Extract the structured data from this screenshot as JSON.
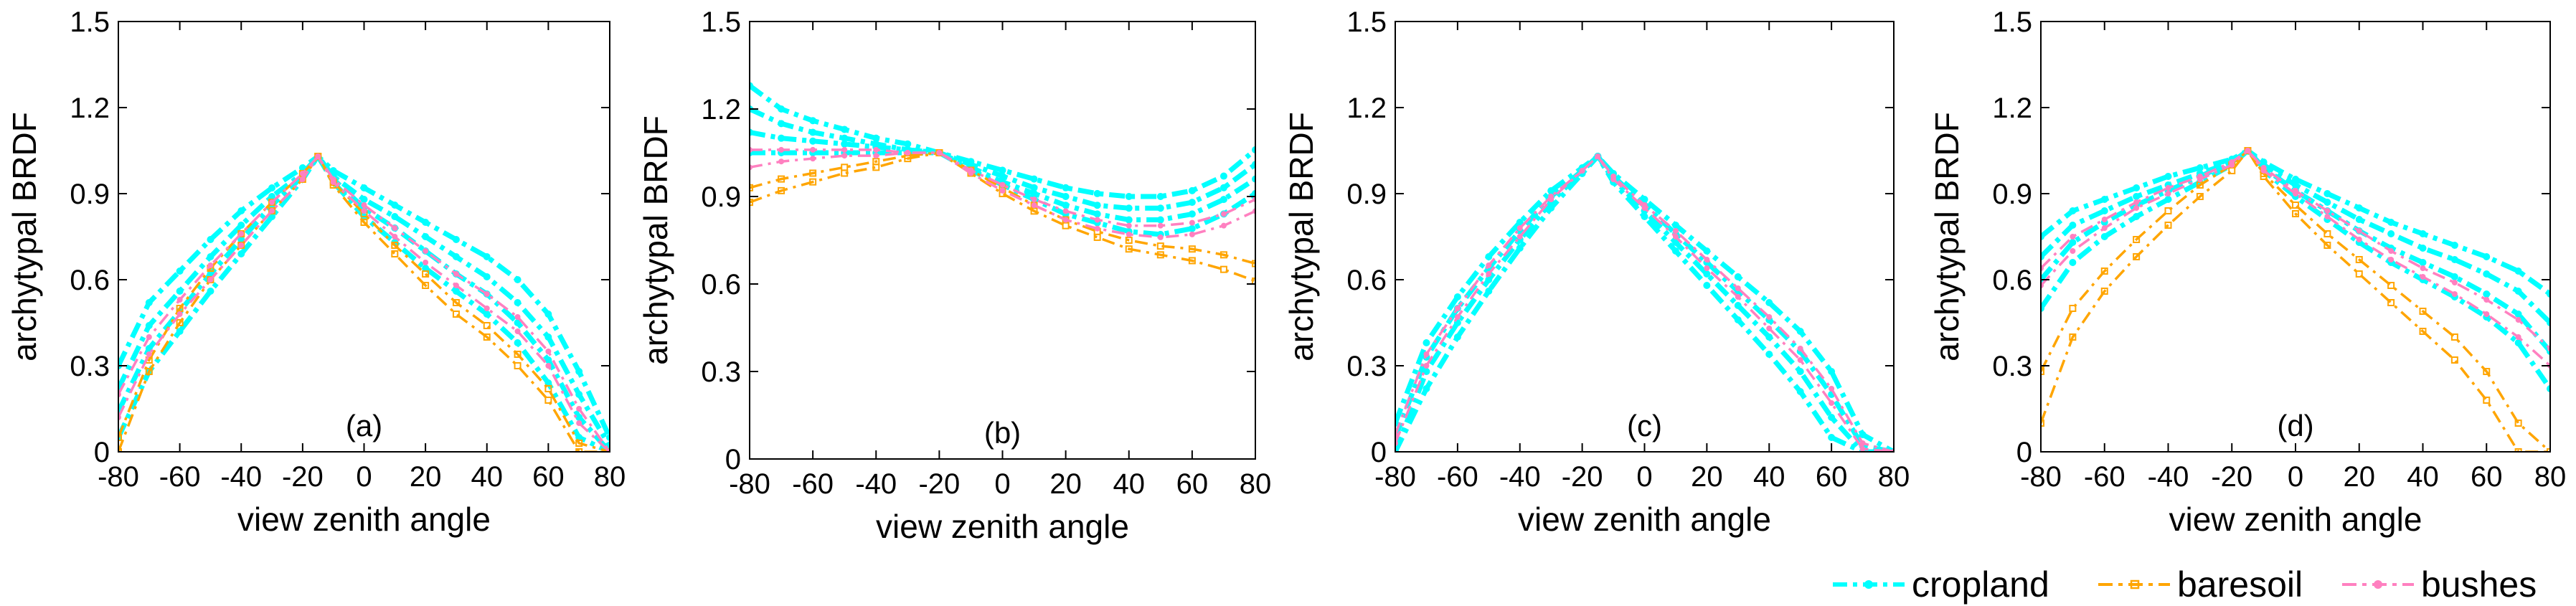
{
  "figure": {
    "legend": [
      {
        "name": "cropland",
        "color": "#00FFFF",
        "marker": "dot",
        "dash": "dashdot"
      },
      {
        "name": "baresoil",
        "color": "#FFA500",
        "marker": "square",
        "dash": "dashdot"
      },
      {
        "name": "bushes",
        "color": "#FF80C0",
        "marker": "dot",
        "dash": "dashdot"
      }
    ]
  },
  "chart_data": [
    {
      "type": "line",
      "panel_label": "(a)",
      "xlabel": "view zenith angle",
      "ylabel": "archytypal BRDF",
      "xlim": [
        -80,
        80
      ],
      "ylim": [
        0,
        1.5
      ],
      "xticks": [
        "-80",
        "-60",
        "-40",
        "-20",
        "0",
        "20",
        "40",
        "60",
        "80"
      ],
      "yticks": [
        "0",
        "0.3",
        "0.6",
        "0.9",
        "1.2",
        "1.5"
      ],
      "x": [
        -80,
        -70,
        -60,
        -50,
        -40,
        -30,
        -20,
        -15,
        -10,
        0,
        10,
        20,
        30,
        40,
        50,
        60,
        70,
        80
      ],
      "series": [
        {
          "name": "cropland",
          "values": [
            0.3,
            0.52,
            0.63,
            0.74,
            0.84,
            0.92,
            0.99,
            1.03,
            0.98,
            0.92,
            0.86,
            0.8,
            0.74,
            0.68,
            0.6,
            0.48,
            0.28,
            0.05
          ]
        },
        {
          "name": "cropland",
          "values": [
            0.22,
            0.44,
            0.56,
            0.68,
            0.79,
            0.89,
            0.97,
            1.03,
            0.96,
            0.88,
            0.82,
            0.75,
            0.68,
            0.61,
            0.52,
            0.4,
            0.2,
            0.02
          ]
        },
        {
          "name": "cropland",
          "values": [
            0.14,
            0.36,
            0.49,
            0.62,
            0.74,
            0.86,
            0.96,
            1.03,
            0.95,
            0.85,
            0.78,
            0.7,
            0.62,
            0.55,
            0.45,
            0.32,
            0.12,
            0.0
          ]
        },
        {
          "name": "cropland",
          "values": [
            0.05,
            0.28,
            0.42,
            0.56,
            0.69,
            0.82,
            0.95,
            1.03,
            0.94,
            0.82,
            0.73,
            0.64,
            0.56,
            0.48,
            0.38,
            0.24,
            0.05,
            0.0
          ]
        },
        {
          "name": "baresoil",
          "values": [
            0.0,
            0.28,
            0.45,
            0.6,
            0.72,
            0.84,
            0.95,
            1.03,
            0.93,
            0.8,
            0.69,
            0.58,
            0.48,
            0.4,
            0.3,
            0.18,
            0.0,
            0.0
          ]
        },
        {
          "name": "baresoil",
          "values": [
            0.05,
            0.32,
            0.5,
            0.64,
            0.76,
            0.87,
            0.97,
            1.03,
            0.94,
            0.83,
            0.72,
            0.62,
            0.52,
            0.44,
            0.34,
            0.22,
            0.03,
            0.0
          ]
        },
        {
          "name": "bushes",
          "values": [
            0.12,
            0.34,
            0.48,
            0.6,
            0.72,
            0.84,
            0.95,
            1.03,
            0.94,
            0.84,
            0.75,
            0.66,
            0.58,
            0.5,
            0.42,
            0.3,
            0.1,
            0.0
          ]
        },
        {
          "name": "bushes",
          "values": [
            0.2,
            0.4,
            0.53,
            0.65,
            0.76,
            0.87,
            0.97,
            1.03,
            0.95,
            0.86,
            0.78,
            0.7,
            0.62,
            0.55,
            0.47,
            0.35,
            0.15,
            0.0
          ]
        }
      ]
    },
    {
      "type": "line",
      "panel_label": "(b)",
      "xlabel": "view zenith angle",
      "ylabel": "archytypal BRDF",
      "xlim": [
        -80,
        80
      ],
      "ylim": [
        0,
        1.5
      ],
      "xticks": [
        "-80",
        "-60",
        "-40",
        "-20",
        "0",
        "20",
        "40",
        "60",
        "80"
      ],
      "yticks": [
        "0",
        "0.3",
        "0.6",
        "0.9",
        "1.2",
        "1.5"
      ],
      "x": [
        -80,
        -70,
        -60,
        -50,
        -40,
        -30,
        -20,
        -10,
        0,
        10,
        20,
        30,
        40,
        50,
        60,
        70,
        80
      ],
      "series": [
        {
          "name": "cropland",
          "values": [
            1.28,
            1.2,
            1.16,
            1.13,
            1.1,
            1.08,
            1.05,
            1.02,
            0.99,
            0.96,
            0.93,
            0.91,
            0.9,
            0.9,
            0.92,
            0.97,
            1.06
          ]
        },
        {
          "name": "cropland",
          "values": [
            1.2,
            1.15,
            1.12,
            1.1,
            1.08,
            1.06,
            1.05,
            1.01,
            0.97,
            0.93,
            0.9,
            0.87,
            0.86,
            0.86,
            0.88,
            0.93,
            1.01
          ]
        },
        {
          "name": "cropland",
          "values": [
            1.12,
            1.1,
            1.09,
            1.08,
            1.07,
            1.06,
            1.05,
            1.0,
            0.95,
            0.91,
            0.87,
            0.84,
            0.82,
            0.82,
            0.84,
            0.89,
            0.96
          ]
        },
        {
          "name": "cropland",
          "values": [
            1.05,
            1.05,
            1.05,
            1.05,
            1.05,
            1.05,
            1.05,
            0.99,
            0.94,
            0.89,
            0.84,
            0.81,
            0.78,
            0.77,
            0.79,
            0.84,
            0.91
          ]
        },
        {
          "name": "baresoil",
          "values": [
            0.88,
            0.92,
            0.95,
            0.98,
            1.0,
            1.03,
            1.05,
            0.98,
            0.91,
            0.85,
            0.8,
            0.76,
            0.72,
            0.7,
            0.68,
            0.65,
            0.61
          ]
        },
        {
          "name": "baresoil",
          "values": [
            0.93,
            0.96,
            0.98,
            1.0,
            1.02,
            1.04,
            1.05,
            0.99,
            0.93,
            0.87,
            0.82,
            0.78,
            0.75,
            0.73,
            0.72,
            0.7,
            0.67
          ]
        },
        {
          "name": "bushes",
          "values": [
            1.0,
            1.02,
            1.03,
            1.04,
            1.04,
            1.05,
            1.05,
            0.98,
            0.92,
            0.87,
            0.82,
            0.79,
            0.77,
            0.76,
            0.77,
            0.8,
            0.85
          ]
        },
        {
          "name": "bushes",
          "values": [
            1.06,
            1.06,
            1.06,
            1.06,
            1.06,
            1.05,
            1.05,
            0.99,
            0.94,
            0.89,
            0.85,
            0.82,
            0.8,
            0.8,
            0.81,
            0.84,
            0.89
          ]
        }
      ]
    },
    {
      "type": "line",
      "panel_label": "(c)",
      "xlabel": "view zenith angle",
      "ylabel": "archytypal BRDF",
      "xlim": [
        -80,
        80
      ],
      "ylim": [
        0,
        1.5
      ],
      "xticks": [
        "-80",
        "-60",
        "-40",
        "-20",
        "0",
        "20",
        "40",
        "60",
        "80"
      ],
      "yticks": [
        "0",
        "0.3",
        "0.6",
        "0.9",
        "1.2",
        "1.5"
      ],
      "x": [
        -80,
        -70,
        -60,
        -50,
        -40,
        -30,
        -20,
        -15,
        -10,
        0,
        10,
        20,
        30,
        40,
        50,
        60,
        70,
        80
      ],
      "series": [
        {
          "name": "cropland",
          "values": [
            0.1,
            0.38,
            0.54,
            0.68,
            0.8,
            0.91,
            0.99,
            1.03,
            0.97,
            0.88,
            0.79,
            0.7,
            0.61,
            0.52,
            0.42,
            0.28,
            0.06,
            0.0
          ]
        },
        {
          "name": "cropland",
          "values": [
            0.05,
            0.33,
            0.5,
            0.64,
            0.77,
            0.89,
            0.98,
            1.03,
            0.96,
            0.86,
            0.76,
            0.66,
            0.56,
            0.46,
            0.35,
            0.2,
            0.02,
            0.0
          ]
        },
        {
          "name": "cropland",
          "values": [
            0.0,
            0.28,
            0.45,
            0.6,
            0.74,
            0.87,
            0.98,
            1.03,
            0.95,
            0.84,
            0.73,
            0.62,
            0.51,
            0.4,
            0.28,
            0.12,
            0.0,
            0.0
          ]
        },
        {
          "name": "cropland",
          "values": [
            0.0,
            0.22,
            0.4,
            0.56,
            0.71,
            0.85,
            0.97,
            1.03,
            0.94,
            0.82,
            0.7,
            0.58,
            0.46,
            0.34,
            0.21,
            0.05,
            0.0,
            0.0
          ]
        },
        {
          "name": "bushes",
          "values": [
            0.03,
            0.3,
            0.47,
            0.62,
            0.75,
            0.88,
            0.98,
            1.03,
            0.95,
            0.85,
            0.75,
            0.64,
            0.54,
            0.43,
            0.32,
            0.17,
            0.01,
            0.0
          ]
        },
        {
          "name": "bushes",
          "values": [
            0.06,
            0.34,
            0.5,
            0.65,
            0.78,
            0.89,
            0.98,
            1.03,
            0.96,
            0.86,
            0.77,
            0.67,
            0.57,
            0.47,
            0.36,
            0.22,
            0.03,
            0.0
          ]
        }
      ]
    },
    {
      "type": "line",
      "panel_label": "(d)",
      "xlabel": "view zenith angle",
      "ylabel": "archytypal BRDF",
      "xlim": [
        -80,
        80
      ],
      "ylim": [
        0,
        1.5
      ],
      "xticks": [
        "-80",
        "-60",
        "-40",
        "-20",
        "0",
        "20",
        "40",
        "60",
        "80"
      ],
      "yticks": [
        "0",
        "0.3",
        "0.6",
        "0.9",
        "1.2",
        "1.5"
      ],
      "x": [
        -80,
        -70,
        -60,
        -50,
        -40,
        -30,
        -20,
        -15,
        -10,
        0,
        10,
        20,
        30,
        40,
        50,
        60,
        70,
        80
      ],
      "series": [
        {
          "name": "cropland",
          "values": [
            0.75,
            0.84,
            0.88,
            0.92,
            0.96,
            0.99,
            1.02,
            1.05,
            1.01,
            0.95,
            0.9,
            0.85,
            0.8,
            0.76,
            0.72,
            0.68,
            0.63,
            0.55
          ]
        },
        {
          "name": "cropland",
          "values": [
            0.68,
            0.79,
            0.84,
            0.89,
            0.93,
            0.97,
            1.01,
            1.05,
            1.0,
            0.93,
            0.87,
            0.81,
            0.76,
            0.71,
            0.67,
            0.62,
            0.56,
            0.45
          ]
        },
        {
          "name": "cropland",
          "values": [
            0.6,
            0.73,
            0.8,
            0.86,
            0.91,
            0.96,
            1.01,
            1.05,
            0.99,
            0.91,
            0.84,
            0.77,
            0.71,
            0.66,
            0.61,
            0.55,
            0.48,
            0.35
          ]
        },
        {
          "name": "cropland",
          "values": [
            0.5,
            0.66,
            0.75,
            0.82,
            0.88,
            0.94,
            1.0,
            1.05,
            0.98,
            0.89,
            0.81,
            0.73,
            0.66,
            0.6,
            0.54,
            0.47,
            0.38,
            0.22
          ]
        },
        {
          "name": "baresoil",
          "values": [
            0.1,
            0.4,
            0.56,
            0.68,
            0.79,
            0.89,
            0.98,
            1.05,
            0.96,
            0.83,
            0.72,
            0.62,
            0.52,
            0.42,
            0.32,
            0.18,
            0.0,
            0.0
          ]
        },
        {
          "name": "baresoil",
          "values": [
            0.28,
            0.5,
            0.63,
            0.74,
            0.84,
            0.93,
            1.0,
            1.05,
            0.97,
            0.86,
            0.76,
            0.67,
            0.58,
            0.49,
            0.4,
            0.28,
            0.1,
            0.0
          ]
        },
        {
          "name": "bushes",
          "values": [
            0.58,
            0.7,
            0.78,
            0.85,
            0.9,
            0.95,
            1.0,
            1.05,
            0.98,
            0.9,
            0.82,
            0.74,
            0.67,
            0.61,
            0.55,
            0.48,
            0.4,
            0.3
          ]
        },
        {
          "name": "bushes",
          "values": [
            0.64,
            0.75,
            0.81,
            0.87,
            0.92,
            0.96,
            1.01,
            1.05,
            0.99,
            0.91,
            0.84,
            0.77,
            0.7,
            0.64,
            0.59,
            0.53,
            0.46,
            0.36
          ]
        }
      ]
    }
  ]
}
